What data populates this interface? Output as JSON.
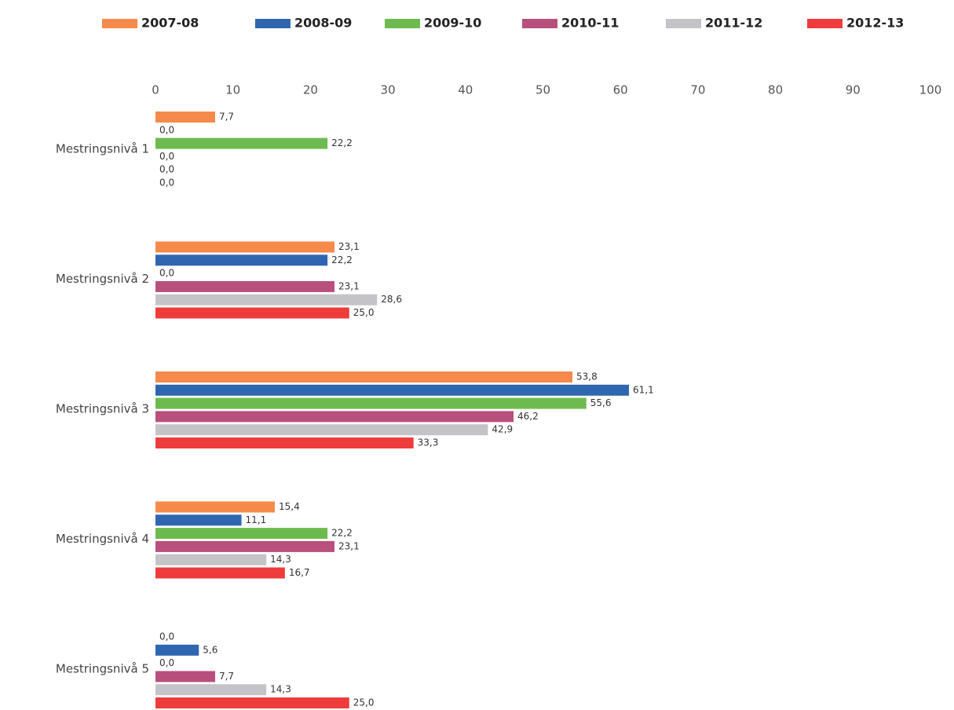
{
  "chart_data": {
    "type": "hbar",
    "categories": [
      "Mestringsnivå 1",
      "Mestringsnivå 2",
      "Mestringsnivå 3",
      "Mestringsnivå 4",
      "Mestringsnivå 5"
    ],
    "series": [
      {
        "name": "2007-08",
        "color": "#f58a4b",
        "values": [
          7.7,
          23.1,
          53.8,
          15.4,
          0.0
        ],
        "value_labels": [
          "7,7",
          "23,1",
          "53,8",
          "15,4",
          "0,0"
        ]
      },
      {
        "name": "2008-09",
        "color": "#2f66b0",
        "values": [
          0.0,
          22.2,
          61.1,
          11.1,
          5.6
        ],
        "value_labels": [
          "0,0",
          "22,2",
          "61,1",
          "11,1",
          "5,6"
        ]
      },
      {
        "name": "2009-10",
        "color": "#6dbb4f",
        "values": [
          22.2,
          0.0,
          55.6,
          22.2,
          0.0
        ],
        "value_labels": [
          "22,2",
          "0,0",
          "55,6",
          "22,2",
          "0,0"
        ]
      },
      {
        "name": "2010-11",
        "color": "#b84f7d",
        "values": [
          0.0,
          23.1,
          46.2,
          23.1,
          7.7
        ],
        "value_labels": [
          "0,0",
          "23,1",
          "46,2",
          "23,1",
          "7,7"
        ]
      },
      {
        "name": "2011-12",
        "color": "#c4c4c8",
        "values": [
          0.0,
          28.6,
          42.9,
          14.3,
          14.3
        ],
        "value_labels": [
          "0,0",
          "28,6",
          "42,9",
          "14,3",
          "14,3"
        ]
      },
      {
        "name": "2012-13",
        "color": "#ee3b3b",
        "values": [
          0.0,
          25.0,
          33.3,
          16.7,
          25.0
        ],
        "value_labels": [
          "0,0",
          "25,0",
          "33,3",
          "16,7",
          "25,0"
        ]
      }
    ],
    "xlim": [
      0,
      100
    ],
    "xticks": [
      0,
      10,
      20,
      30,
      40,
      50,
      60,
      70,
      80,
      90,
      100
    ],
    "grid": false,
    "legend": "top"
  }
}
